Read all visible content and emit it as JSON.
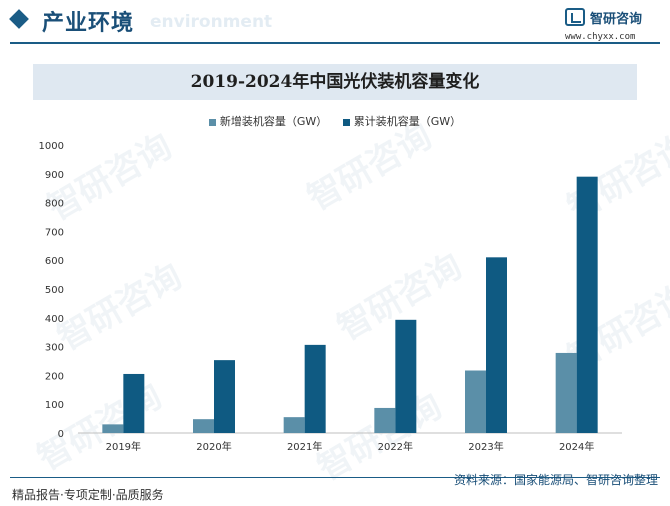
{
  "header": {
    "section_title": "产业环境",
    "section_en": "environment",
    "logo_name": "智研咨询",
    "logo_url": "www.chyxx.com"
  },
  "footer": {
    "source": "资料来源：国家能源局、智研咨询整理",
    "slogan": "精品报告·专项定制·品质服务"
  },
  "watermark_text": "智研咨询",
  "chart_data": {
    "type": "bar",
    "title": "2019-2024年中国光伏装机容量变化",
    "categories": [
      "2019年",
      "2020年",
      "2021年",
      "2022年",
      "2023年",
      "2024年"
    ],
    "series": [
      {
        "name": "新增装机容量（GW）",
        "color": "#5b8fa8",
        "values": [
          30,
          48,
          55,
          87,
          217,
          278
        ]
      },
      {
        "name": "累计装机容量（GW）",
        "color": "#0f5a82",
        "values": [
          205,
          253,
          306,
          393,
          610,
          890
        ]
      }
    ],
    "y_ticks": [
      "0",
      "100",
      "200",
      "300",
      "400",
      "500",
      "600",
      "700",
      "800",
      "900",
      "1000"
    ],
    "ylim": [
      0,
      1000
    ],
    "legend_position": "top",
    "grid": false
  }
}
